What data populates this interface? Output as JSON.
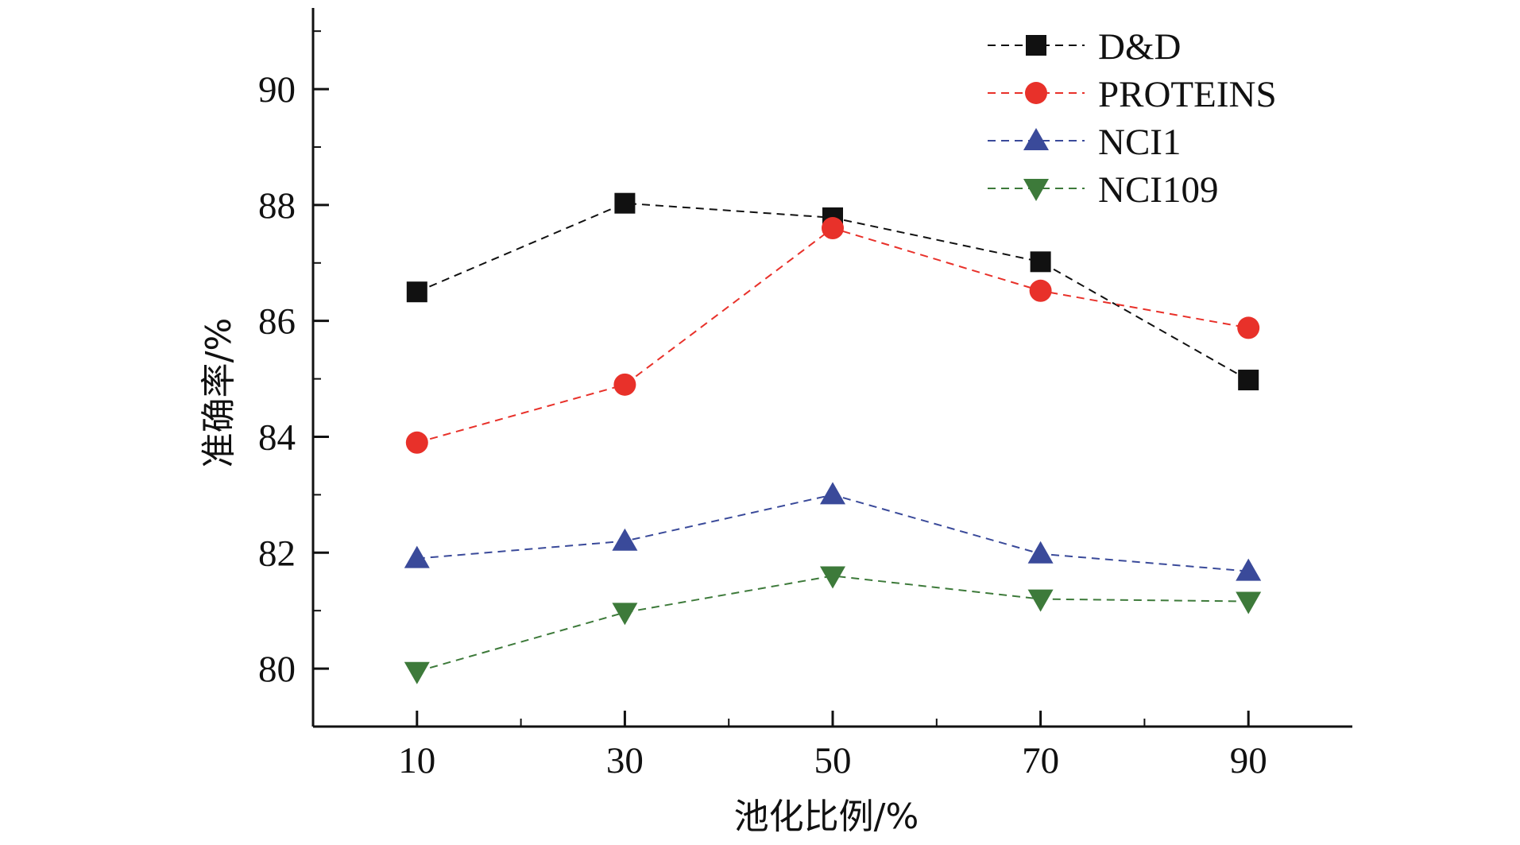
{
  "chart_data": {
    "type": "line",
    "title": "",
    "xlabel": "池化比例/%",
    "ylabel": "准确率/%",
    "x": [
      10,
      30,
      50,
      70,
      90
    ],
    "x_tick_labels": [
      "10",
      "30",
      "50",
      "70",
      "90"
    ],
    "xlim": [
      0,
      100
    ],
    "y_ticks": [
      80,
      82,
      84,
      86,
      88,
      90
    ],
    "y_tick_labels": [
      "80",
      "82",
      "84",
      "86",
      "88",
      "90"
    ],
    "ylim": [
      79,
      91.4
    ],
    "grid": false,
    "legend_position": "top-right",
    "series": [
      {
        "name": "D&D",
        "values": [
          86.5,
          88.03,
          87.78,
          87.02,
          84.98
        ],
        "color": "#111111",
        "marker": "square"
      },
      {
        "name": "PROTEINS",
        "values": [
          83.9,
          84.9,
          87.6,
          86.52,
          85.88
        ],
        "color": "#e8312a",
        "marker": "circle"
      },
      {
        "name": "NCI1",
        "values": [
          81.9,
          82.2,
          83.0,
          81.98,
          81.68
        ],
        "color": "#3a4a9a",
        "marker": "triangle-up"
      },
      {
        "name": "NCI109",
        "values": [
          79.95,
          80.97,
          81.6,
          81.2,
          81.16
        ],
        "color": "#3d7a3a",
        "marker": "triangle-down"
      }
    ]
  }
}
